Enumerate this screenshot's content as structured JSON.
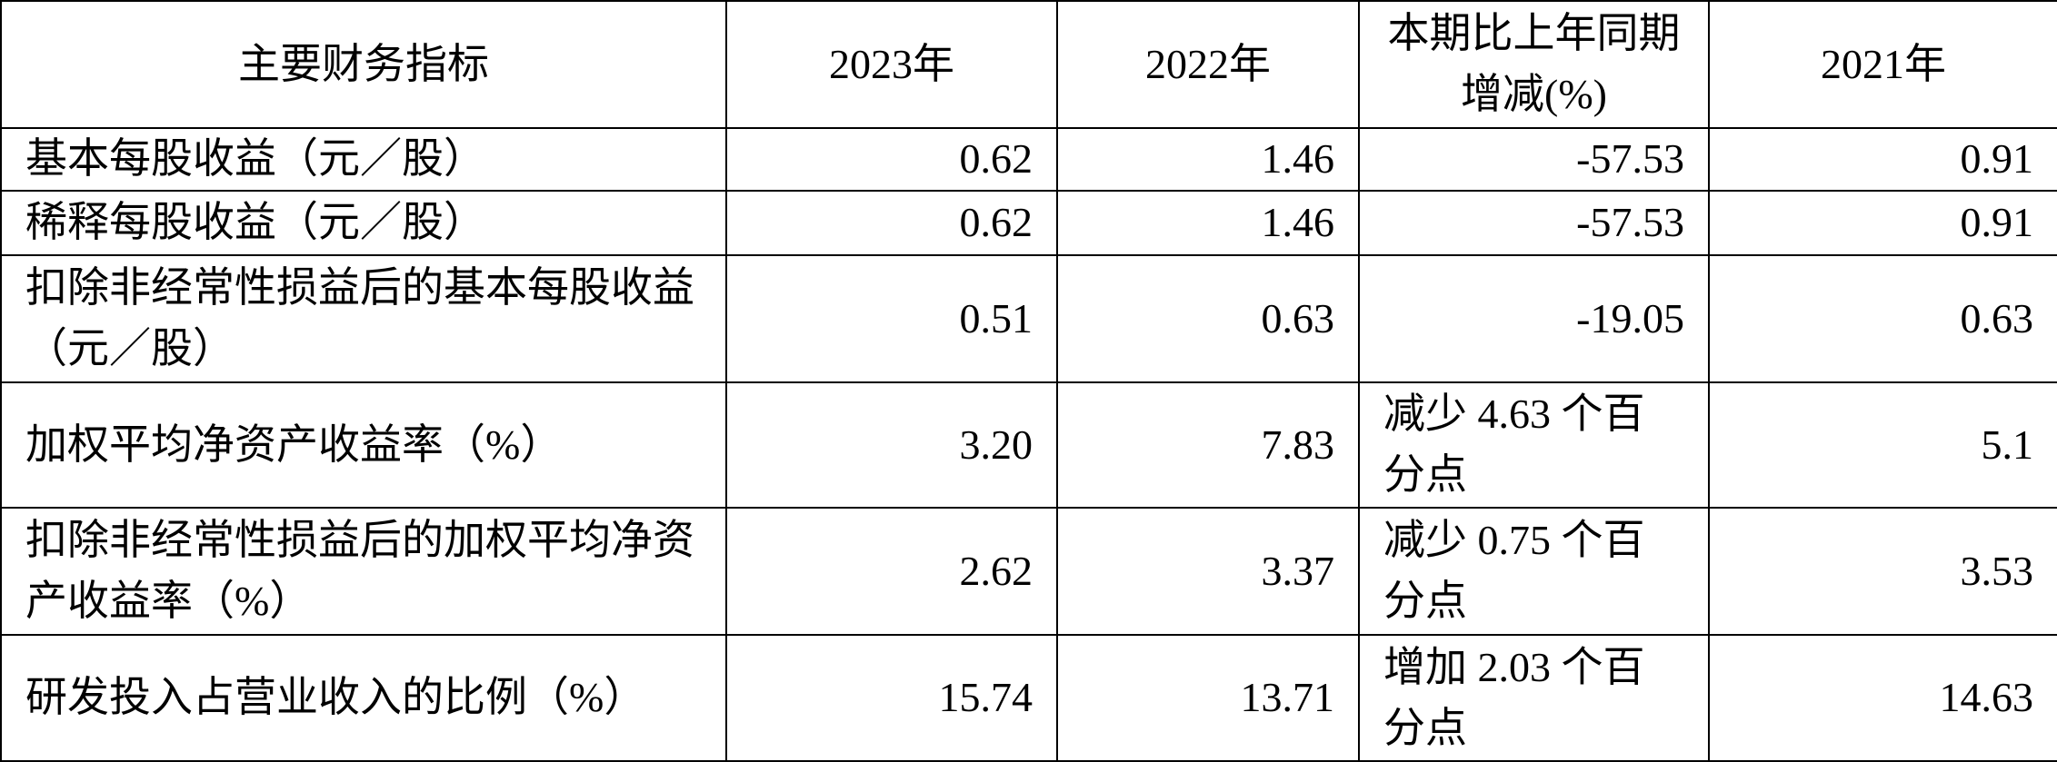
{
  "table": {
    "header": [
      "主要财务指标",
      "2023年",
      "2022年",
      "本期比上年同期增减(%)",
      "2021年"
    ],
    "rows": [
      [
        "基本每股收益（元／股）",
        "0.62",
        "1.46",
        "-57.53",
        "0.91"
      ],
      [
        "稀释每股收益（元／股）",
        "0.62",
        "1.46",
        "-57.53",
        "0.91"
      ],
      [
        "扣除非经常性损益后的基本每股收益（元／股）",
        "0.51",
        "0.63",
        "-19.05",
        "0.63"
      ],
      [
        "加权平均净资产收益率（%）",
        "3.20",
        "7.83",
        "减少 4.63 个百分点",
        "5.1"
      ],
      [
        "扣除非经常性损益后的加权平均净资产收益率（%）",
        "2.62",
        "3.37",
        "减少 0.75 个百分点",
        "3.53"
      ],
      [
        "研发投入占营业收入的比例（%）",
        "15.74",
        "13.71",
        "增加 2.03 个百分点",
        "14.63"
      ]
    ]
  }
}
